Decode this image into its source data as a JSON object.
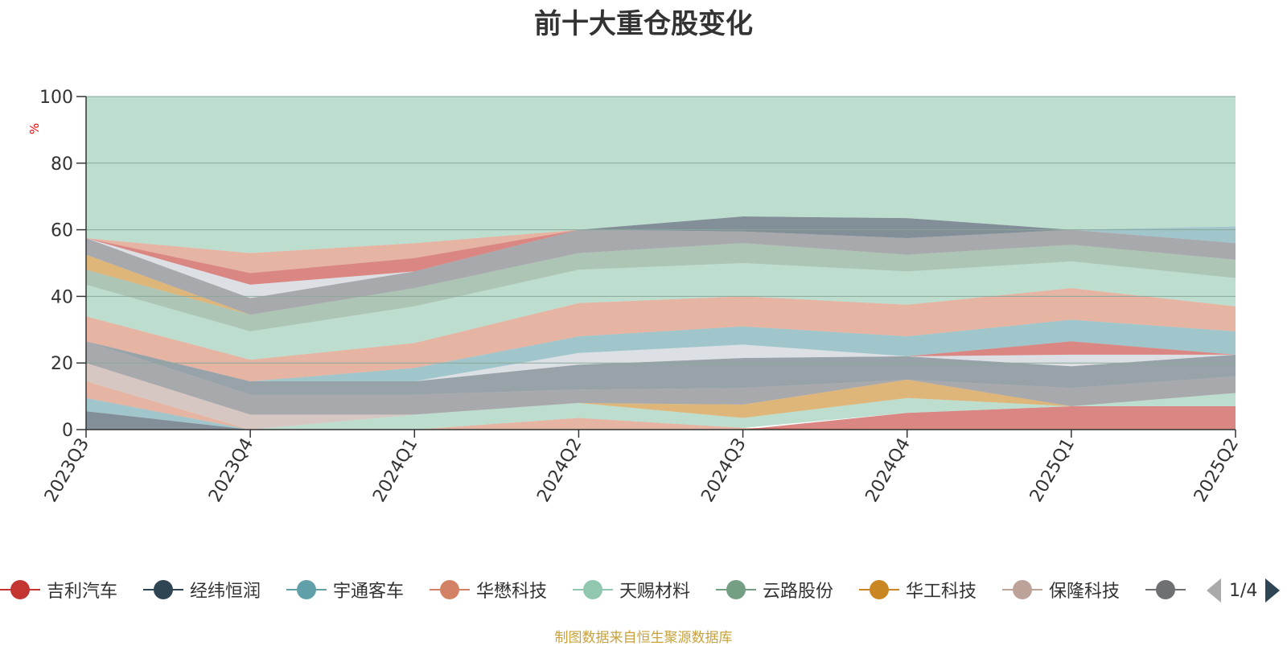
{
  "title": "前十大重仓股变化",
  "source_note": "制图数据来自恒生聚源数据库",
  "legend_page": "1/4",
  "legend_items": [
    {
      "name": "吉利汽车",
      "color": "#c23531"
    },
    {
      "name": "经纬恒润",
      "color": "#2f4554"
    },
    {
      "name": "宇通客车",
      "color": "#61a0a8"
    },
    {
      "name": "华懋科技",
      "color": "#d48265"
    },
    {
      "name": "天赐材料",
      "color": "#91c7ae"
    },
    {
      "name": "云路股份",
      "color": "#749f83"
    },
    {
      "name": "华工科技",
      "color": "#ca8622"
    },
    {
      "name": "保隆科技",
      "color": "#bda29a"
    },
    {
      "name": "",
      "color": "#6e7074"
    }
  ],
  "chart_data": {
    "type": "area",
    "title": "前十大重仓股变化",
    "ylabel": "%",
    "ylim": [
      0,
      100
    ],
    "yticks": [
      0,
      20,
      40,
      60,
      80,
      100
    ],
    "categories": [
      "2023Q3",
      "2023Q4",
      "2024Q1",
      "2024Q2",
      "2024Q3",
      "2024Q4",
      "2025Q1",
      "2025Q2"
    ],
    "grid": true,
    "bands": [
      {
        "color": "#2f4554",
        "lower": [
          0,
          0,
          0,
          0,
          0,
          0,
          0,
          0
        ],
        "upper": [
          5.5,
          0,
          0,
          0,
          0,
          0,
          0,
          0
        ]
      },
      {
        "color": "#61a0a8",
        "lower": [
          5.5,
          0,
          0,
          0,
          0,
          0,
          0,
          0
        ],
        "upper": [
          9.5,
          0,
          0,
          0,
          0,
          0,
          0,
          0
        ]
      },
      {
        "color": "#d48265",
        "lower": [
          9.5,
          0,
          0,
          0,
          0,
          0,
          0,
          0
        ],
        "upper": [
          14.5,
          0,
          0,
          3.5,
          0.5,
          0,
          0,
          0
        ]
      },
      {
        "color": "#c23531",
        "lower": [
          0,
          0,
          0,
          0,
          0,
          0,
          0,
          0
        ],
        "upper": [
          0,
          0,
          0,
          0,
          0,
          5,
          7,
          7
        ]
      },
      {
        "color": "#91c7ae",
        "lower": [
          14.5,
          0,
          0,
          3.5,
          0.5,
          5,
          7,
          7
        ],
        "upper": [
          14.5,
          0,
          4.5,
          8,
          3.5,
          9.5,
          7,
          11
        ]
      },
      {
        "color": "#ca8622",
        "lower": [
          14.5,
          0,
          4.5,
          8,
          3.5,
          9.5,
          7,
          11
        ],
        "upper": [
          14.5,
          0,
          4.5,
          8,
          7.5,
          15,
          7,
          11
        ]
      },
      {
        "color": "#bda29a",
        "lower": [
          14.5,
          0,
          4.5,
          8,
          7.5,
          15,
          7,
          11
        ],
        "upper": [
          20,
          4.5,
          4.5,
          8,
          7.5,
          15,
          7,
          11
        ]
      },
      {
        "color": "#6e7074",
        "lower": [
          20,
          4.5,
          4.5,
          8,
          7.5,
          15,
          7,
          11
        ],
        "upper": [
          26.5,
          10.5,
          10.5,
          12,
          12.5,
          15,
          12.5,
          16
        ]
      },
      {
        "color": "#546570",
        "lower": [
          26.5,
          10.5,
          10.5,
          12,
          12.5,
          15,
          12.5,
          16
        ],
        "upper": [
          26.5,
          14.5,
          14.5,
          19.5,
          21.5,
          22,
          19,
          22.5
        ]
      },
      {
        "color": "#c4ccd3",
        "lower": [
          26.5,
          14.5,
          14.5,
          19.5,
          21.5,
          22,
          19,
          22.5
        ],
        "upper": [
          26.5,
          14.5,
          14.5,
          23,
          25.5,
          22,
          22.5,
          22.5
        ]
      },
      {
        "color": "#c23531",
        "lower": [
          26.5,
          14.5,
          14.5,
          23,
          25.5,
          22,
          22.5,
          22.5
        ],
        "upper": [
          26.5,
          14.5,
          14.5,
          23,
          25.5,
          22,
          26.5,
          22.5
        ]
      },
      {
        "color": "#61a0a8",
        "lower": [
          26.5,
          14.5,
          14.5,
          23,
          25.5,
          22,
          26.5,
          22.5
        ],
        "upper": [
          26.5,
          14.5,
          18.5,
          28,
          31,
          28,
          33,
          29.5
        ]
      },
      {
        "color": "#d48265",
        "lower": [
          26.5,
          14.5,
          18.5,
          28,
          31,
          28,
          33,
          29.5
        ],
        "upper": [
          34,
          21,
          26,
          38,
          40,
          37.5,
          42.5,
          37
        ]
      },
      {
        "color": "#91c7ae",
        "lower": [
          34,
          21,
          26,
          38,
          40,
          37.5,
          42.5,
          37
        ],
        "upper": [
          43.5,
          29.5,
          37,
          48,
          50,
          47.5,
          50.5,
          45.5
        ]
      },
      {
        "color": "#749f83",
        "lower": [
          43.5,
          29.5,
          37,
          48,
          50,
          47.5,
          50.5,
          45.5
        ],
        "upper": [
          48,
          34.5,
          42.5,
          53,
          56,
          52.5,
          55.5,
          51
        ]
      },
      {
        "color": "#ca8622",
        "lower": [
          48,
          34.5,
          42.5,
          53,
          56,
          52.5,
          55.5,
          51
        ],
        "upper": [
          52.5,
          34.5,
          42.5,
          53,
          56,
          52.5,
          55.5,
          51
        ]
      },
      {
        "color": "#6e7074",
        "lower": [
          52.5,
          34.5,
          42.5,
          53,
          56,
          52.5,
          55.5,
          51
        ],
        "upper": [
          57.5,
          39.5,
          47.5,
          60,
          59.5,
          57.5,
          60,
          56
        ]
      },
      {
        "color": "#c4ccd3",
        "lower": [
          57.5,
          39.5,
          47.5,
          60,
          59.5,
          57.5,
          60,
          56
        ],
        "upper": [
          57.5,
          43.5,
          47.5,
          60,
          59.5,
          57.5,
          60,
          56
        ]
      },
      {
        "color": "#c23531",
        "lower": [
          57.5,
          43.5,
          47.5,
          60,
          59.5,
          57.5,
          60,
          56
        ],
        "upper": [
          57.5,
          47,
          51.5,
          60,
          59.5,
          57.5,
          60,
          56
        ]
      },
      {
        "color": "#d48265",
        "lower": [
          57.5,
          47,
          51.5,
          60,
          59.5,
          57.5,
          60,
          56
        ],
        "upper": [
          57.5,
          53,
          56,
          60,
          59.5,
          57.5,
          60,
          56
        ]
      },
      {
        "color": "#2f4554",
        "lower": [
          57.5,
          53,
          56,
          60,
          59.5,
          57.5,
          60,
          56
        ],
        "upper": [
          57.5,
          53,
          56,
          60,
          64,
          63.5,
          60,
          56
        ]
      },
      {
        "color": "#61a0a8",
        "lower": [
          57.5,
          53,
          56,
          60,
          64,
          63.5,
          60,
          56
        ],
        "upper": [
          57.5,
          53,
          56,
          60,
          64,
          63.5,
          60,
          61
        ]
      },
      {
        "color": "#91c7ae",
        "lower": [
          57.5,
          53,
          56,
          60,
          64,
          63.5,
          60,
          61
        ],
        "upper": [
          100,
          100,
          100,
          100,
          100,
          100,
          100,
          100
        ]
      }
    ]
  }
}
